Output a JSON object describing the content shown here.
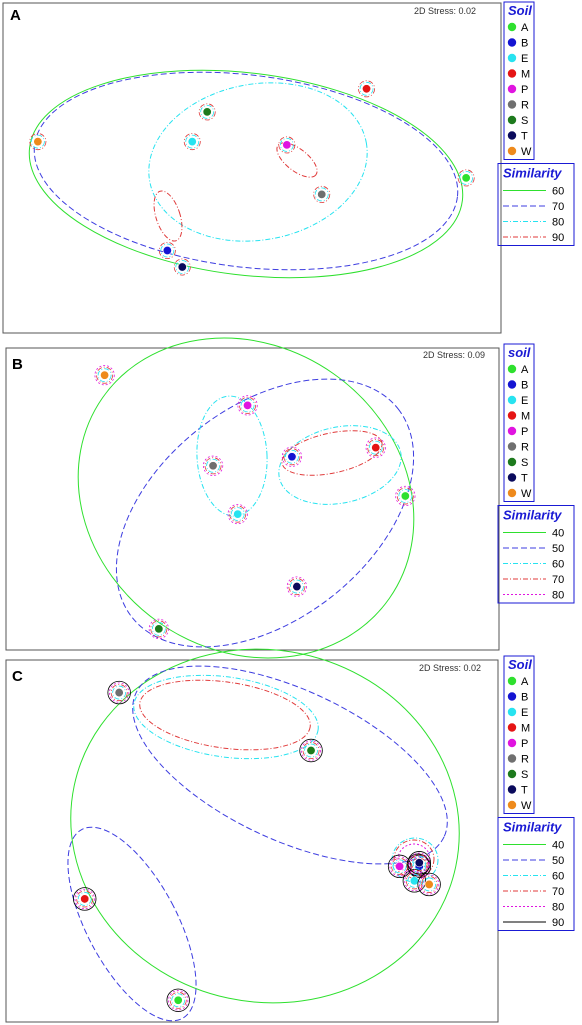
{
  "colors": {
    "A": "#2ee02e",
    "B": "#1414d2",
    "E": "#27e3f0",
    "M": "#e51414",
    "P": "#e014e0",
    "R": "#6f6f6f",
    "S": "#1d7a1d",
    "T": "#0a0a5c",
    "W": "#ee8a1c"
  },
  "chart_data": [
    {
      "type": "scatter",
      "panel": "A",
      "stress": "2D Stress: 0.02",
      "legend_title": "Soil",
      "similarity_title": "Similarity",
      "points": [
        {
          "label": "A",
          "x": 0.93,
          "y": 0.53
        },
        {
          "label": "B",
          "x": 0.33,
          "y": 0.75
        },
        {
          "label": "E",
          "x": 0.38,
          "y": 0.42
        },
        {
          "label": "M",
          "x": 0.73,
          "y": 0.26
        },
        {
          "label": "P",
          "x": 0.57,
          "y": 0.43
        },
        {
          "label": "R",
          "x": 0.64,
          "y": 0.58
        },
        {
          "label": "S",
          "x": 0.41,
          "y": 0.33
        },
        {
          "label": "T",
          "x": 0.36,
          "y": 0.8
        },
        {
          "label": "W",
          "x": 0.07,
          "y": 0.42
        }
      ],
      "similarity_levels": [
        {
          "value": "60",
          "color": "#2ee02e",
          "dash": "solid"
        },
        {
          "value": "70",
          "color": "#3d3de0",
          "dash": "dash"
        },
        {
          "value": "80",
          "color": "#27e3f0",
          "dash": "dashdot"
        },
        {
          "value": "90",
          "color": "#e03b3b",
          "dash": "dashdot"
        }
      ]
    },
    {
      "type": "scatter",
      "panel": "B",
      "stress": "2D Stress: 0.09",
      "legend_title": "soil",
      "similarity_title": "Similarity",
      "points": [
        {
          "label": "A",
          "x": 0.81,
          "y": 0.49
        },
        {
          "label": "B",
          "x": 0.58,
          "y": 0.36
        },
        {
          "label": "E",
          "x": 0.47,
          "y": 0.55
        },
        {
          "label": "M",
          "x": 0.75,
          "y": 0.33
        },
        {
          "label": "P",
          "x": 0.49,
          "y": 0.19
        },
        {
          "label": "R",
          "x": 0.42,
          "y": 0.39
        },
        {
          "label": "S",
          "x": 0.31,
          "y": 0.93
        },
        {
          "label": "T",
          "x": 0.59,
          "y": 0.79
        },
        {
          "label": "W",
          "x": 0.2,
          "y": 0.09
        }
      ],
      "similarity_levels": [
        {
          "value": "40",
          "color": "#2ee02e",
          "dash": "solid"
        },
        {
          "value": "50",
          "color": "#3d3de0",
          "dash": "dash"
        },
        {
          "value": "60",
          "color": "#27e3f0",
          "dash": "dashdot"
        },
        {
          "value": "70",
          "color": "#e03b3b",
          "dash": "dashdot"
        },
        {
          "value": "80",
          "color": "#e014e0",
          "dash": "dot"
        }
      ]
    },
    {
      "type": "scatter",
      "panel": "C",
      "stress": "2D Stress: 0.02",
      "legend_title": "Soil",
      "similarity_title": "Similarity",
      "points": [
        {
          "label": "A",
          "x": 0.35,
          "y": 0.94
        },
        {
          "label": "B",
          "x": 0.84,
          "y": 0.57
        },
        {
          "label": "E",
          "x": 0.83,
          "y": 0.61
        },
        {
          "label": "M",
          "x": 0.16,
          "y": 0.66
        },
        {
          "label": "P",
          "x": 0.8,
          "y": 0.57
        },
        {
          "label": "R",
          "x": 0.23,
          "y": 0.09
        },
        {
          "label": "S",
          "x": 0.62,
          "y": 0.25
        },
        {
          "label": "T",
          "x": 0.84,
          "y": 0.56
        },
        {
          "label": "W",
          "x": 0.86,
          "y": 0.62
        }
      ],
      "similarity_levels": [
        {
          "value": "40",
          "color": "#2ee02e",
          "dash": "solid"
        },
        {
          "value": "50",
          "color": "#3d3de0",
          "dash": "dash"
        },
        {
          "value": "60",
          "color": "#27e3f0",
          "dash": "dashdot"
        },
        {
          "value": "70",
          "color": "#e03b3b",
          "dash": "dashdot"
        },
        {
          "value": "80",
          "color": "#e014e0",
          "dash": "dot"
        },
        {
          "value": "90",
          "color": "#000000",
          "dash": "solid"
        }
      ]
    }
  ]
}
